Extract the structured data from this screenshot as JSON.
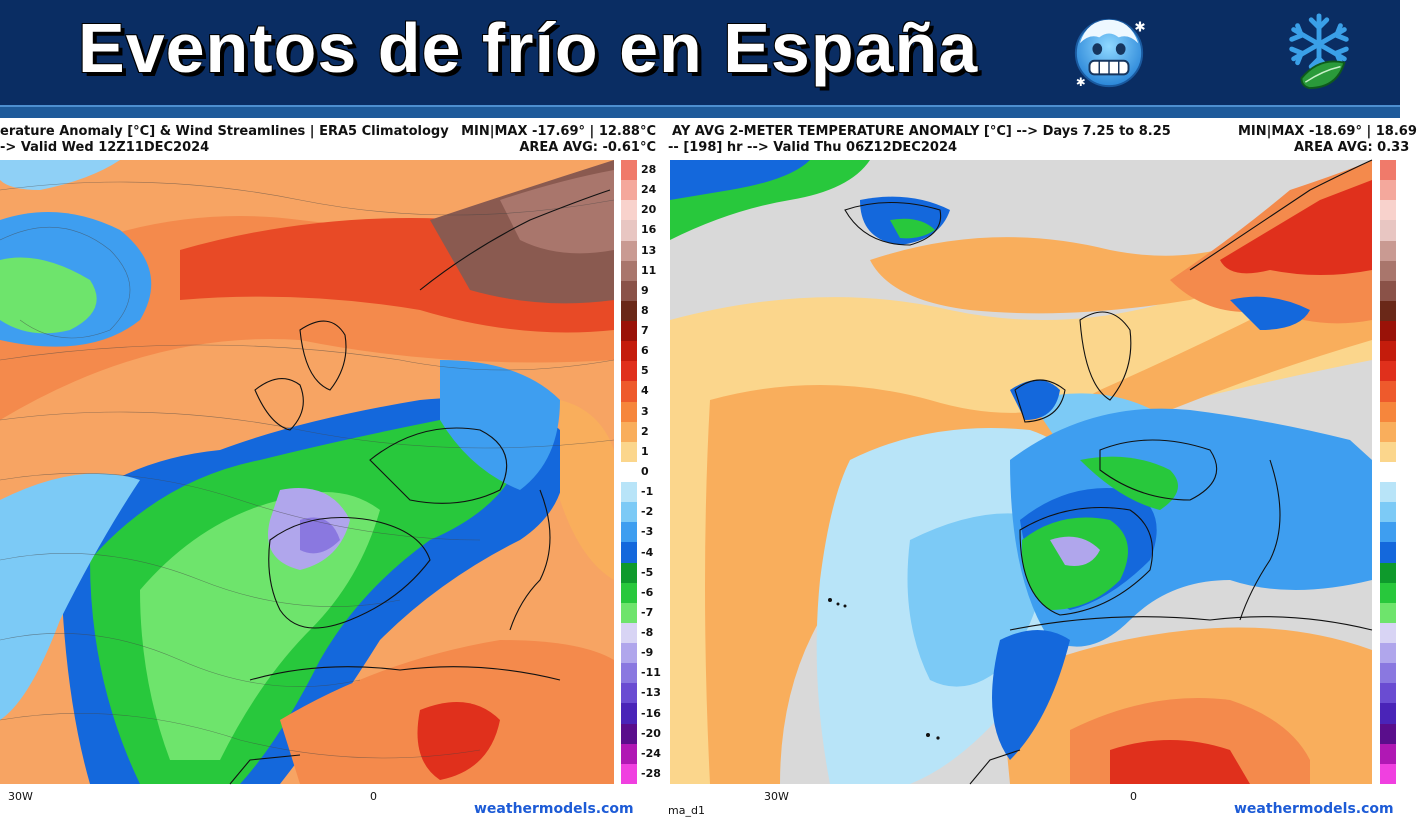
{
  "banner": {
    "title": "Eventos de frío en España",
    "emoji_icon": "cold-face-icon",
    "logo_icon": "snowflake-leaf-icon",
    "background_color": "#0a2d63"
  },
  "left_panel": {
    "header_line1": "erature Anomaly [°C] & Wind Streamlines | ERA5 Climatology",
    "header_line2": "-> Valid Wed 12Z11DEC2024",
    "minmax": "MIN|MAX -17.69° | 12.88°C",
    "area_avg": "AREA AVG: -0.61°C",
    "credit": "weathermodels.com",
    "tick_labels": [
      "30W",
      "0"
    ]
  },
  "right_panel": {
    "header_line1": "AY AVG 2-METER TEMPERATURE ANOMALY [°C] --> Days 7.25 to 8.25",
    "header_line2": "-- [198] hr --> Valid Thu 06Z12DEC2024",
    "minmax": "MIN|MAX -18.69° | 18.69",
    "area_avg": "AREA AVG: 0.33",
    "credit": "weathermodels.com",
    "footer_left": "ma_d1",
    "tick_labels": [
      "30W",
      "0"
    ]
  },
  "colorbar": {
    "labels": [
      "28",
      "24",
      "20",
      "16",
      "13",
      "11",
      "9",
      "8",
      "7",
      "6",
      "5",
      "4",
      "3",
      "2",
      "1",
      "0",
      "-1",
      "-2",
      "-3",
      "-4",
      "-5",
      "-6",
      "-7",
      "-8",
      "-9",
      "-11",
      "-13",
      "-16",
      "-20",
      "-24",
      "-28"
    ],
    "colors": [
      "#f07a6a",
      "#f4a89c",
      "#f8d2cc",
      "#e8c6c2",
      "#c99a92",
      "#a9766c",
      "#8a5248",
      "#6a2818",
      "#9a1208",
      "#c41c0c",
      "#e0301c",
      "#ee5a2c",
      "#f6863c",
      "#f9ae5c",
      "#fbd68c",
      "#ffffff",
      "#b8e4f8",
      "#7ccaf6",
      "#3e9ef0",
      "#1468dc",
      "#0e9a2c",
      "#28c83c",
      "#6ee46c",
      "#d8d4f4",
      "#b0a6ec",
      "#8a78e0",
      "#6a4cd2",
      "#4a24b8",
      "#5a0e8c",
      "#b018b4",
      "#f040e0"
    ]
  }
}
